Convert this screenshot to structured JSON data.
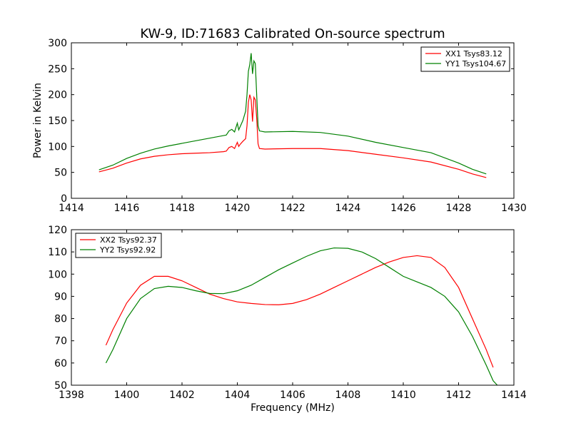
{
  "chart_data": [
    {
      "type": "line",
      "title": "KW-9, ID:71683 Calibrated On-source spectrum",
      "xlabel": "",
      "ylabel": "Power in Kelvin",
      "xlim": [
        1414,
        1430
      ],
      "ylim": [
        0,
        300
      ],
      "xticks": [
        "1414",
        "1416",
        "1418",
        "1420",
        "1422",
        "1424",
        "1426",
        "1428",
        "1430"
      ],
      "yticks": [
        "0",
        "50",
        "100",
        "150",
        "200",
        "250",
        "300"
      ],
      "grid": false,
      "legend_position": "top-right",
      "series": [
        {
          "name": "XX1 Tsys83.12",
          "color": "#ff0000",
          "points": [
            [
              1415.0,
              51
            ],
            [
              1415.5,
              58
            ],
            [
              1416.0,
              68
            ],
            [
              1416.5,
              76
            ],
            [
              1417.0,
              81
            ],
            [
              1417.5,
              84
            ],
            [
              1418.0,
              86
            ],
            [
              1418.5,
              87
            ],
            [
              1419.0,
              88
            ],
            [
              1419.5,
              90
            ],
            [
              1419.6,
              91
            ],
            [
              1419.7,
              98
            ],
            [
              1419.8,
              100
            ],
            [
              1419.9,
              96
            ],
            [
              1420.0,
              108
            ],
            [
              1420.05,
              100
            ],
            [
              1420.1,
              104
            ],
            [
              1420.2,
              110
            ],
            [
              1420.3,
              115
            ],
            [
              1420.35,
              140
            ],
            [
              1420.4,
              185
            ],
            [
              1420.45,
              200
            ],
            [
              1420.5,
              190
            ],
            [
              1420.55,
              148
            ],
            [
              1420.6,
              195
            ],
            [
              1420.65,
              190
            ],
            [
              1420.7,
              155
            ],
            [
              1420.75,
              105
            ],
            [
              1420.8,
              96
            ],
            [
              1421.0,
              95
            ],
            [
              1422.0,
              96
            ],
            [
              1423.0,
              96
            ],
            [
              1424.0,
              92
            ],
            [
              1425.0,
              85
            ],
            [
              1426.0,
              78
            ],
            [
              1427.0,
              70
            ],
            [
              1428.0,
              56
            ],
            [
              1428.5,
              47
            ],
            [
              1429.0,
              40
            ]
          ]
        },
        {
          "name": "YY1 Tsys104.67",
          "color": "#008000",
          "points": [
            [
              1415.0,
              55
            ],
            [
              1415.5,
              64
            ],
            [
              1416.0,
              77
            ],
            [
              1416.5,
              87
            ],
            [
              1417.0,
              95
            ],
            [
              1417.5,
              101
            ],
            [
              1418.0,
              106
            ],
            [
              1418.5,
              111
            ],
            [
              1419.0,
              116
            ],
            [
              1419.5,
              121
            ],
            [
              1419.6,
              122
            ],
            [
              1419.7,
              130
            ],
            [
              1419.8,
              133
            ],
            [
              1419.9,
              128
            ],
            [
              1420.0,
              145
            ],
            [
              1420.05,
              132
            ],
            [
              1420.1,
              138
            ],
            [
              1420.2,
              150
            ],
            [
              1420.3,
              168
            ],
            [
              1420.35,
              200
            ],
            [
              1420.4,
              245
            ],
            [
              1420.45,
              258
            ],
            [
              1420.5,
              280
            ],
            [
              1420.55,
              240
            ],
            [
              1420.6,
              265
            ],
            [
              1420.65,
              260
            ],
            [
              1420.7,
              200
            ],
            [
              1420.75,
              140
            ],
            [
              1420.8,
              130
            ],
            [
              1421.0,
              128
            ],
            [
              1422.0,
              129
            ],
            [
              1423.0,
              127
            ],
            [
              1424.0,
              120
            ],
            [
              1425.0,
              108
            ],
            [
              1426.0,
              98
            ],
            [
              1427.0,
              88
            ],
            [
              1428.0,
              68
            ],
            [
              1428.5,
              56
            ],
            [
              1429.0,
              47
            ]
          ]
        }
      ]
    },
    {
      "type": "line",
      "title": "",
      "xlabel": "Frequency (MHz)",
      "ylabel": "",
      "xlim": [
        1398,
        1414
      ],
      "ylim": [
        50,
        120
      ],
      "xticks": [
        "1398",
        "1400",
        "1402",
        "1404",
        "1406",
        "1408",
        "1410",
        "1412",
        "1414"
      ],
      "yticks": [
        "50",
        "60",
        "70",
        "80",
        "90",
        "100",
        "110",
        "120"
      ],
      "grid": false,
      "legend_position": "top-left",
      "series": [
        {
          "name": "XX2 Tsys92.37",
          "color": "#ff0000",
          "points": [
            [
              1399.25,
              68
            ],
            [
              1399.5,
              75
            ],
            [
              1400.0,
              87
            ],
            [
              1400.5,
              95
            ],
            [
              1401.0,
              99
            ],
            [
              1401.5,
              99
            ],
            [
              1402.0,
              97
            ],
            [
              1402.5,
              94
            ],
            [
              1403.0,
              91
            ],
            [
              1403.5,
              89
            ],
            [
              1404.0,
              87.5
            ],
            [
              1404.5,
              86.8
            ],
            [
              1405.0,
              86.3
            ],
            [
              1405.5,
              86.2
            ],
            [
              1406.0,
              86.8
            ],
            [
              1406.5,
              88.5
            ],
            [
              1407.0,
              91
            ],
            [
              1407.5,
              94
            ],
            [
              1408.0,
              97
            ],
            [
              1408.5,
              100
            ],
            [
              1409.0,
              103
            ],
            [
              1409.5,
              105.5
            ],
            [
              1410.0,
              107.5
            ],
            [
              1410.5,
              108.3
            ],
            [
              1411.0,
              107.5
            ],
            [
              1411.5,
              103
            ],
            [
              1412.0,
              94
            ],
            [
              1412.5,
              80
            ],
            [
              1413.0,
              66
            ],
            [
              1413.25,
              58
            ]
          ]
        },
        {
          "name": "YY2 Tsys92.92",
          "color": "#008000",
          "points": [
            [
              1399.25,
              60
            ],
            [
              1399.5,
              66
            ],
            [
              1400.0,
              80
            ],
            [
              1400.5,
              89
            ],
            [
              1401.0,
              93.5
            ],
            [
              1401.5,
              94.5
            ],
            [
              1402.0,
              94
            ],
            [
              1402.5,
              92.5
            ],
            [
              1403.0,
              91.3
            ],
            [
              1403.5,
              91.2
            ],
            [
              1404.0,
              92.5
            ],
            [
              1404.5,
              95
            ],
            [
              1405.0,
              98.5
            ],
            [
              1405.5,
              102
            ],
            [
              1406.0,
              105
            ],
            [
              1406.5,
              108
            ],
            [
              1407.0,
              110.5
            ],
            [
              1407.5,
              111.8
            ],
            [
              1408.0,
              111.6
            ],
            [
              1408.5,
              110
            ],
            [
              1409.0,
              107
            ],
            [
              1409.5,
              103
            ],
            [
              1410.0,
              99
            ],
            [
              1410.5,
              96.5
            ],
            [
              1411.0,
              94
            ],
            [
              1411.5,
              90
            ],
            [
              1412.0,
              83
            ],
            [
              1412.5,
              72
            ],
            [
              1413.0,
              59
            ],
            [
              1413.25,
              52
            ],
            [
              1413.4,
              50
            ]
          ]
        }
      ]
    }
  ]
}
